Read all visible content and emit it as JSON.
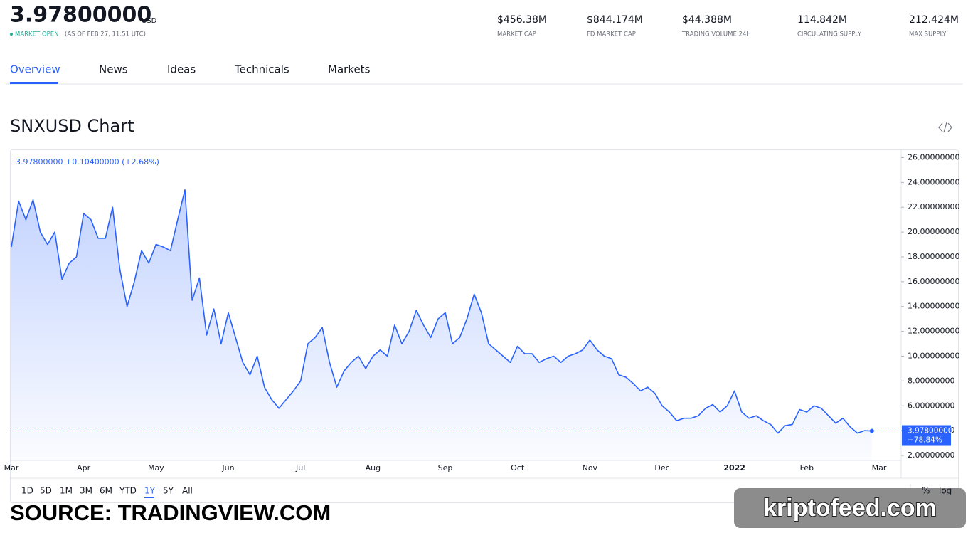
{
  "header": {
    "price": "3.97800000",
    "currency": "USD",
    "market_status": "MARKET OPEN",
    "as_of": "(AS OF FEB 27, 11:51 UTC)",
    "stats": [
      {
        "value": "$456.38M",
        "label": "MARKET CAP"
      },
      {
        "value": "$844.174M",
        "label": "FD MARKET CAP"
      },
      {
        "value": "$44.388M",
        "label": "TRADING VOLUME 24H"
      },
      {
        "value": "114.842M",
        "label": "CIRCULATING SUPPLY"
      },
      {
        "value": "212.424M",
        "label": "MAX SUPPLY"
      }
    ]
  },
  "tabs": [
    {
      "label": "Overview",
      "active": true
    },
    {
      "label": "News"
    },
    {
      "label": "Ideas"
    },
    {
      "label": "Technicals"
    },
    {
      "label": "Markets"
    }
  ],
  "chart_data": {
    "type": "line",
    "title": "SNXUSD Chart",
    "legend_text": "3.97800000 +0.10400000 (+2.68%)",
    "color": "#2962ff",
    "categories": [
      "Mar",
      null,
      null,
      null,
      null,
      null,
      null,
      null,
      null,
      null,
      "Apr",
      null,
      null,
      null,
      null,
      null,
      null,
      null,
      null,
      null,
      "May",
      null,
      null,
      null,
      null,
      null,
      null,
      null,
      null,
      null,
      "Jun",
      null,
      null,
      null,
      null,
      null,
      null,
      null,
      null,
      null,
      "Jul",
      null,
      null,
      null,
      null,
      null,
      null,
      null,
      null,
      null,
      "Aug",
      null,
      null,
      null,
      null,
      null,
      null,
      null,
      null,
      null,
      "Sep",
      null,
      null,
      null,
      null,
      null,
      null,
      null,
      null,
      null,
      "Oct",
      null,
      null,
      null,
      null,
      null,
      null,
      null,
      null,
      null,
      "Nov",
      null,
      null,
      null,
      null,
      null,
      null,
      null,
      null,
      null,
      "Dec",
      null,
      null,
      null,
      null,
      null,
      null,
      null,
      null,
      null,
      "2022",
      null,
      null,
      null,
      null,
      null,
      null,
      null,
      null,
      null,
      "Feb",
      null,
      null,
      null,
      null,
      null,
      null,
      null,
      null,
      null,
      "Mar"
    ],
    "values": [
      18.8,
      22.5,
      21,
      22.6,
      20,
      19,
      20,
      16.2,
      17.5,
      18,
      21.5,
      21,
      19.5,
      19.5,
      22,
      17,
      14,
      16,
      18.5,
      17.5,
      19,
      18.8,
      18.5,
      21,
      23.4,
      14.5,
      16.3,
      11.7,
      13.8,
      11,
      13.5,
      11.5,
      9.5,
      8.5,
      10,
      7.5,
      6.5,
      5.8,
      6.5,
      7.2,
      8,
      11,
      11.5,
      12.3,
      9.5,
      7.5,
      8.8,
      9.5,
      10,
      9,
      10,
      10.5,
      10,
      12.5,
      11,
      12,
      13.7,
      12.5,
      11.5,
      13,
      13.5,
      11,
      11.5,
      13,
      15,
      13.5,
      11,
      10.5,
      10,
      9.5,
      10.8,
      10.2,
      10.2,
      9.5,
      9.8,
      10,
      9.5,
      10,
      10.2,
      10.5,
      11.3,
      10.5,
      10,
      9.8,
      8.5,
      8.3,
      7.8,
      7.2,
      7.5,
      7,
      6,
      5.5,
      4.8,
      5,
      5,
      5.2,
      5.8,
      6.1,
      5.5,
      6,
      7.2,
      5.5,
      5,
      5.2,
      4.8,
      4.5,
      3.8,
      4.4,
      4.5,
      5.7,
      5.5,
      6,
      5.8,
      5.2,
      4.6,
      5,
      4.3,
      3.8,
      4,
      3.978,
      null
    ],
    "ylim": [
      1.6,
      26.6
    ],
    "yticks": [
      {
        "value": 2,
        "label": "2.00000000"
      },
      {
        "value": 4,
        "label": "4.00000000"
      },
      {
        "value": 6,
        "label": "6.00000000"
      },
      {
        "value": 8,
        "label": "8.00000000"
      },
      {
        "value": 10,
        "label": "10.00000000"
      },
      {
        "value": 12,
        "label": "12.00000000"
      },
      {
        "value": 14,
        "label": "14.00000000"
      },
      {
        "value": 16,
        "label": "16.00000000"
      },
      {
        "value": 18,
        "label": "18.00000000"
      },
      {
        "value": 20,
        "label": "20.00000000"
      },
      {
        "value": 22,
        "label": "22.00000000"
      },
      {
        "value": 24,
        "label": "24.00000000"
      },
      {
        "value": 26,
        "label": "26.00000000"
      }
    ],
    "last_price": {
      "value": 3.978,
      "label": "3.97800000"
    },
    "period_change": {
      "value": -78.84,
      "label": "−78.84%"
    }
  },
  "range_buttons": [
    {
      "label": "1D"
    },
    {
      "label": "5D"
    },
    {
      "label": "1M"
    },
    {
      "label": "3M"
    },
    {
      "label": "6M"
    },
    {
      "label": "YTD"
    },
    {
      "label": "1Y",
      "active": true
    },
    {
      "label": "5Y"
    },
    {
      "label": "All"
    }
  ],
  "scale_buttons": [
    "%",
    "log"
  ],
  "watermarks": {
    "source": "SOURCE: TRADINGVIEW.COM",
    "site": "kriptofeed.com"
  }
}
